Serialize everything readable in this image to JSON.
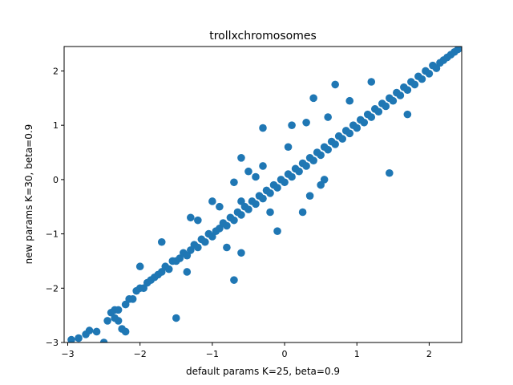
{
  "chart_data": {
    "type": "scatter",
    "title": "trollxchromosomes",
    "xlabel": "default params K=25, beta=0.9",
    "ylabel": "new params K=30, beta=0.9",
    "xlim": [
      -3.05,
      2.45
    ],
    "ylim": [
      -3.0,
      2.45
    ],
    "xticks": [
      -3,
      -2,
      -1,
      0,
      1,
      2
    ],
    "yticks": [
      -3,
      -2,
      -1,
      0,
      1,
      2
    ],
    "grid": false,
    "marker_color": "#1f77b4",
    "series": [
      {
        "points": [
          [
            -2.95,
            -2.95
          ],
          [
            -2.85,
            -2.92
          ],
          [
            -2.75,
            -2.85
          ],
          [
            -2.7,
            -2.78
          ],
          [
            -2.6,
            -2.8
          ],
          [
            -2.5,
            -3.0
          ],
          [
            -2.45,
            -2.6
          ],
          [
            -2.4,
            -2.45
          ],
          [
            -2.35,
            -2.4
          ],
          [
            -2.3,
            -2.4
          ],
          [
            -2.3,
            -2.6
          ],
          [
            -2.25,
            -2.75
          ],
          [
            -2.2,
            -2.8
          ],
          [
            -2.2,
            -2.3
          ],
          [
            -2.15,
            -2.2
          ],
          [
            -2.1,
            -2.2
          ],
          [
            -2.05,
            -2.05
          ],
          [
            -2.0,
            -2.0
          ],
          [
            -1.95,
            -2.0
          ],
          [
            -1.9,
            -1.9
          ],
          [
            -1.85,
            -1.85
          ],
          [
            -1.8,
            -1.8
          ],
          [
            -1.75,
            -1.75
          ],
          [
            -1.7,
            -1.7
          ],
          [
            -1.65,
            -1.6
          ],
          [
            -1.6,
            -1.65
          ],
          [
            -1.55,
            -1.5
          ],
          [
            -1.5,
            -1.5
          ],
          [
            -1.45,
            -1.45
          ],
          [
            -1.4,
            -1.35
          ],
          [
            -1.35,
            -1.4
          ],
          [
            -1.3,
            -1.3
          ],
          [
            -1.25,
            -1.2
          ],
          [
            -1.2,
            -1.25
          ],
          [
            -1.15,
            -1.1
          ],
          [
            -1.1,
            -1.15
          ],
          [
            -1.05,
            -1.0
          ],
          [
            -1.0,
            -1.05
          ],
          [
            -0.95,
            -0.95
          ],
          [
            -0.9,
            -0.9
          ],
          [
            -0.85,
            -0.8
          ],
          [
            -0.8,
            -0.85
          ],
          [
            -0.75,
            -0.7
          ],
          [
            -0.7,
            -0.75
          ],
          [
            -0.65,
            -0.6
          ],
          [
            -0.6,
            -0.65
          ],
          [
            -0.55,
            -0.5
          ],
          [
            -0.5,
            -0.55
          ],
          [
            -0.45,
            -0.4
          ],
          [
            -0.4,
            -0.45
          ],
          [
            -0.35,
            -0.3
          ],
          [
            -0.3,
            -0.35
          ],
          [
            -0.25,
            -0.2
          ],
          [
            -0.2,
            -0.25
          ],
          [
            -0.15,
            -0.1
          ],
          [
            -0.1,
            -0.15
          ],
          [
            -0.05,
            0.0
          ],
          [
            0.0,
            -0.05
          ],
          [
            0.05,
            0.1
          ],
          [
            0.1,
            0.05
          ],
          [
            0.15,
            0.2
          ],
          [
            0.2,
            0.15
          ],
          [
            0.25,
            0.3
          ],
          [
            0.3,
            0.25
          ],
          [
            0.35,
            0.4
          ],
          [
            0.4,
            0.35
          ],
          [
            0.45,
            0.5
          ],
          [
            0.5,
            0.45
          ],
          [
            0.55,
            0.6
          ],
          [
            0.6,
            0.55
          ],
          [
            0.65,
            0.7
          ],
          [
            0.7,
            0.65
          ],
          [
            0.75,
            0.8
          ],
          [
            0.8,
            0.75
          ],
          [
            0.85,
            0.9
          ],
          [
            0.9,
            0.85
          ],
          [
            0.95,
            1.0
          ],
          [
            1.0,
            0.95
          ],
          [
            1.05,
            1.1
          ],
          [
            1.1,
            1.05
          ],
          [
            1.15,
            1.2
          ],
          [
            1.2,
            1.15
          ],
          [
            1.25,
            1.3
          ],
          [
            1.3,
            1.25
          ],
          [
            1.35,
            1.4
          ],
          [
            1.4,
            1.35
          ],
          [
            1.45,
            1.5
          ],
          [
            1.5,
            1.45
          ],
          [
            1.55,
            1.6
          ],
          [
            1.6,
            1.55
          ],
          [
            1.65,
            1.7
          ],
          [
            1.7,
            1.65
          ],
          [
            1.75,
            1.8
          ],
          [
            1.8,
            1.75
          ],
          [
            1.85,
            1.9
          ],
          [
            1.9,
            1.85
          ],
          [
            1.95,
            2.0
          ],
          [
            2.0,
            1.95
          ],
          [
            2.05,
            2.1
          ],
          [
            2.1,
            2.05
          ],
          [
            2.15,
            2.15
          ],
          [
            2.2,
            2.2
          ],
          [
            2.25,
            2.25
          ],
          [
            2.3,
            2.3
          ],
          [
            2.35,
            2.35
          ],
          [
            2.4,
            2.4
          ],
          [
            -1.5,
            -2.55
          ],
          [
            -0.7,
            -1.85
          ],
          [
            -1.2,
            -0.75
          ],
          [
            -1.0,
            -0.4
          ],
          [
            -0.6,
            -0.4
          ],
          [
            -0.4,
            0.05
          ],
          [
            -0.6,
            0.4
          ],
          [
            -0.3,
            0.25
          ],
          [
            -0.3,
            0.95
          ],
          [
            0.1,
            1.0
          ],
          [
            0.3,
            1.05
          ],
          [
            0.4,
            1.5
          ],
          [
            0.7,
            1.75
          ],
          [
            0.9,
            1.45
          ],
          [
            1.45,
            0.12
          ],
          [
            0.25,
            -0.6
          ],
          [
            0.5,
            -0.1
          ],
          [
            0.55,
            0.0
          ],
          [
            -0.1,
            -0.95
          ],
          [
            -0.6,
            -1.35
          ],
          [
            -1.3,
            -0.7
          ],
          [
            -1.7,
            -1.15
          ],
          [
            -2.0,
            -1.6
          ],
          [
            -0.9,
            -0.5
          ],
          [
            -0.8,
            -1.25
          ],
          [
            0.05,
            0.6
          ],
          [
            1.2,
            1.8
          ],
          [
            1.7,
            1.2
          ],
          [
            -2.35,
            -2.55
          ],
          [
            -0.2,
            -0.6
          ],
          [
            0.6,
            1.15
          ],
          [
            -1.35,
            -1.7
          ],
          [
            -0.5,
            0.15
          ],
          [
            0.35,
            -0.3
          ],
          [
            -0.7,
            -0.05
          ]
        ]
      }
    ]
  }
}
